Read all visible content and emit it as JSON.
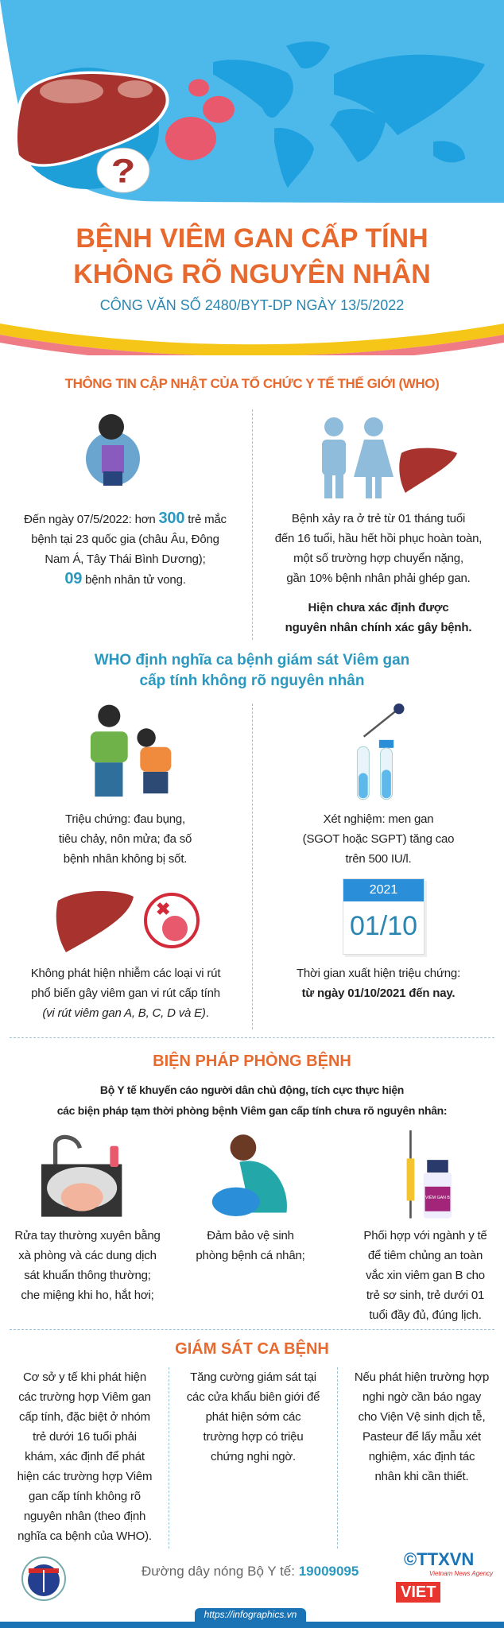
{
  "header": {
    "title_lines": [
      "BỆNH VIÊM GAN CẤP TÍNH",
      "KHÔNG RÕ NGUYÊN NHÂN"
    ],
    "subtitle": "CÔNG VĂN SỐ 2480/BYT-DP NGÀY 13/5/2022"
  },
  "who_update": {
    "heading": "THÔNG TIN CẬP NHẬT CỦA TỔ CHỨC Y TẾ THẾ GIỚI (WHO)",
    "left": {
      "l1a": "Đến ngày 07/5/2022: hơn ",
      "l1num": "300",
      "l1b": " trẻ mắc",
      "l2": "bệnh tại 23 quốc gia (châu Âu, Đông",
      "l3": "Nam Á, Tây Thái Bình Dương);",
      "l4num": "09",
      "l4b": " bệnh nhân tử vong."
    },
    "right": {
      "lines": [
        "Bệnh xảy ra ở trẻ từ 01 tháng tuổi",
        "đến 16 tuổi, hầu hết hồi phục hoàn toàn,",
        "một số trường hợp chuyển nặng,",
        "gần 10% bệnh nhân phải ghép gan."
      ],
      "bold_lines": [
        "Hiện chưa xác định được",
        "nguyên nhân chính xác gây bệnh."
      ]
    }
  },
  "definition": {
    "heading_lines": [
      "WHO định nghĩa ca bệnh giám sát Viêm gan",
      "cấp tính không rõ nguyên nhân"
    ],
    "symptoms": [
      "Triệu chứng: đau bụng,",
      "tiêu chảy, nôn mửa; đa số",
      "bệnh nhân không bị sốt."
    ],
    "test": [
      "Xét nghiệm: men gan",
      "(SGOT hoặc SGPT) tăng cao",
      "trên 500 IU/l."
    ],
    "virus": [
      "Không phát hiện nhiễm các loại vi rút",
      "phổ biến gây viêm gan vi rút cấp tính"
    ],
    "virus_italic": "(vi rút viêm gan A, B, C, D và E)",
    "virus_end": ".",
    "calendar": {
      "year": "2021",
      "date": "01/10"
    },
    "onset": "Thời gian xuất hiện triệu chứng:",
    "onset_bold": "từ ngày 01/10/2021 đến nay."
  },
  "prevention": {
    "heading": "BIỆN PHÁP PHÒNG BỆNH",
    "intro_lines": [
      "Bộ Y tế khuyến cáo người dân chủ động, tích cực thực hiện",
      "các biện pháp tạm thời phòng bệnh Viêm gan cấp tính chưa rõ nguyên nhân:"
    ],
    "items": [
      {
        "icon": "handwash-icon",
        "lines": [
          "Rửa tay thường xuyên bằng",
          "xà phòng và các dung dịch",
          "sát khuẩn thông thường;",
          "che miệng khi ho, hắt hơi;"
        ]
      },
      {
        "icon": "face-wash-icon",
        "lines": [
          "Đảm bảo vệ sinh",
          "phòng bệnh cá nhân;"
        ]
      },
      {
        "icon": "vaccine-icon",
        "lines": [
          "Phối hợp với ngành y tế",
          "để tiêm chủng an toàn",
          "vắc xin viêm gan B cho",
          "trẻ sơ sinh, trẻ dưới 01",
          "tuổi đầy đủ, đúng lịch."
        ],
        "vial_label": "VIÊM GAN B"
      }
    ]
  },
  "surveillance": {
    "heading": "GIÁM SÁT CA BỆNH",
    "columns": [
      [
        "Cơ sở y tế khi phát hiện",
        "các trường hợp Viêm gan",
        "cấp tính, đặc biệt ở nhóm",
        "trẻ dưới 16 tuổi phải",
        "khám, xác định để phát",
        "hiện các trường hợp Viêm",
        "gan cấp tính không rõ",
        "nguyên nhân (theo định",
        "nghĩa ca bệnh của WHO)."
      ],
      [
        "Tăng cường giám sát tại",
        "các cửa khẩu biên giới để",
        "phát hiện sớm các",
        "trường hợp có triệu",
        "chứng nghi ngờ."
      ],
      [
        "Nếu phát hiện trường hợp",
        "nghi ngờ cần báo ngay",
        "cho Viện Vệ sinh dịch tễ,",
        "Pasteur để lấy mẫu xét",
        "nghiệm, xác định tác",
        "nhân khi cần thiết."
      ]
    ]
  },
  "footer": {
    "hotline_label": "Đường dây nóng Bộ Y tế: ",
    "hotline_number": "19009095",
    "ministry_logo_text": "BỘ Y TẾ",
    "ttxvn_logo": "©TTXVN",
    "ttxvn_sub": "Vietnam News Agency",
    "vietviet_logo": "VIET",
    "url": "https://infographics.vn"
  },
  "colors": {
    "orange": "#e8692e",
    "teal": "#2a98bf",
    "sky": "#4cb8ea",
    "map": "#1ea1de",
    "liver": "#a8322e",
    "bar": "#1a73b5"
  }
}
